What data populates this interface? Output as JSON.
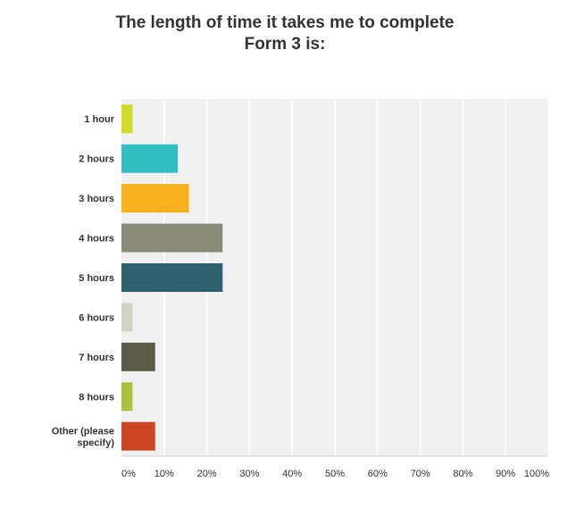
{
  "chart_data": {
    "type": "bar",
    "orientation": "horizontal",
    "title": "The length of time it takes me to complete\nForm 3 is:",
    "categories": [
      "1 hour",
      "2 hours",
      "3 hours",
      "4 hours",
      "5 hours",
      "6 hours",
      "7 hours",
      "8 hours",
      "Other (please specify)"
    ],
    "category_lines": [
      [
        "1 hour"
      ],
      [
        "2 hours"
      ],
      [
        "3 hours"
      ],
      [
        "4 hours"
      ],
      [
        "5 hours"
      ],
      [
        "6 hours"
      ],
      [
        "7 hours"
      ],
      [
        "8 hours"
      ],
      [
        "Other (please",
        "specify)"
      ]
    ],
    "values": [
      2.6,
      13.2,
      15.8,
      23.7,
      23.7,
      2.6,
      7.9,
      2.6,
      7.9
    ],
    "colors": [
      "#cddc29",
      "#33bfc1",
      "#f7b01e",
      "#8a8a7b",
      "#2e5f6d",
      "#d1d1c4",
      "#5b5b4b",
      "#a9c23f",
      "#cc4522"
    ],
    "xlim": [
      0,
      100
    ],
    "xticks": [
      0,
      10,
      20,
      30,
      40,
      50,
      60,
      70,
      80,
      90,
      100
    ],
    "xtick_labels": [
      "0%",
      "10%",
      "20%",
      "30%",
      "40%",
      "50%",
      "60%",
      "70%",
      "80%",
      "90%",
      "100%"
    ],
    "grid": true,
    "legend": "none",
    "plot_background": "#f0f0f0",
    "grid_color": "#ffffff"
  }
}
